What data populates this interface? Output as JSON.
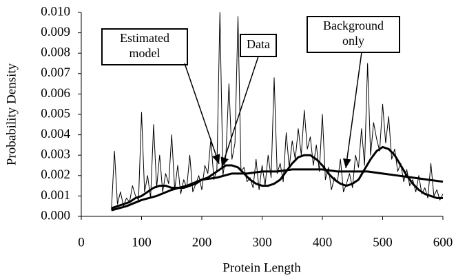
{
  "chart_data": {
    "type": "line",
    "ylabel": "Probability Density",
    "xlabel": "Protein Length",
    "xlim": [
      0,
      600
    ],
    "xticks": [
      0,
      100,
      200,
      300,
      400,
      500,
      600
    ],
    "ylim": [
      0,
      0.01
    ],
    "yticks": [
      {
        "value": 0,
        "label": "0.000"
      },
      0.001,
      0.002,
      0.003,
      0.004,
      0.005,
      0.006,
      0.007,
      0.008,
      0.009,
      {
        "value": 0.01,
        "label": "0.010"
      }
    ],
    "annotations": [
      [
        "Estimated",
        "model"
      ],
      [
        "Data"
      ],
      [
        "Background",
        "only"
      ]
    ],
    "series": [
      {
        "color": "#000000",
        "x": [
          50,
          55,
          60,
          65,
          70,
          75,
          80,
          85,
          90,
          95,
          100,
          105,
          110,
          115,
          120,
          125,
          130,
          135,
          140,
          145,
          150,
          155,
          160,
          165,
          170,
          175,
          180,
          185,
          190,
          195,
          200,
          205,
          210,
          215,
          220,
          225,
          230,
          235,
          240,
          245,
          250,
          255,
          260,
          265,
          270,
          275,
          280,
          285,
          290,
          295,
          300,
          305,
          310,
          315,
          320,
          325,
          330,
          335,
          340,
          345,
          350,
          355,
          360,
          365,
          370,
          375,
          380,
          385,
          390,
          395,
          400,
          405,
          410,
          415,
          420,
          425,
          430,
          435,
          440,
          445,
          450,
          455,
          460,
          465,
          470,
          475,
          480,
          485,
          490,
          495,
          500,
          505,
          510,
          515,
          520,
          525,
          530,
          535,
          540,
          545,
          550,
          555,
          560,
          565,
          570,
          575,
          580,
          585,
          590,
          595,
          600
        ],
        "values": [
          0.0003,
          0.0032,
          0.0006,
          0.0012,
          0.0005,
          0.0009,
          0.0007,
          0.0015,
          0.001,
          0.0008,
          0.0051,
          0.0012,
          0.002,
          0.0009,
          0.0045,
          0.0014,
          0.003,
          0.0012,
          0.0021,
          0.0016,
          0.004,
          0.0013,
          0.0025,
          0.0011,
          0.0018,
          0.0014,
          0.003,
          0.0012,
          0.0016,
          0.002,
          0.0013,
          0.0025,
          0.0021,
          0.0038,
          0.0018,
          0.0023,
          0.01,
          0.002,
          0.003,
          0.0065,
          0.0028,
          0.0036,
          0.0098,
          0.0022,
          0.0024,
          0.0017,
          0.0019,
          0.0014,
          0.0028,
          0.0013,
          0.0025,
          0.0015,
          0.003,
          0.0019,
          0.0068,
          0.0021,
          0.0026,
          0.0017,
          0.0041,
          0.0024,
          0.0037,
          0.0028,
          0.0043,
          0.003,
          0.0052,
          0.0033,
          0.0039,
          0.0025,
          0.0035,
          0.0022,
          0.005,
          0.0018,
          0.0024,
          0.0013,
          0.0019,
          0.0017,
          0.0028,
          0.0012,
          0.0016,
          0.0021,
          0.0014,
          0.003,
          0.0024,
          0.0043,
          0.0025,
          0.0075,
          0.003,
          0.0046,
          0.0038,
          0.0032,
          0.0055,
          0.0036,
          0.0049,
          0.0028,
          0.0033,
          0.0022,
          0.0026,
          0.0017,
          0.0023,
          0.0015,
          0.0018,
          0.0012,
          0.002,
          0.0011,
          0.0014,
          0.0009,
          0.0026,
          0.001,
          0.0013,
          0.0008,
          0.0011
        ]
      },
      {
        "color": "#000000",
        "x": [
          50,
          60,
          70,
          80,
          90,
          100,
          110,
          120,
          130,
          140,
          150,
          160,
          170,
          180,
          190,
          200,
          210,
          220,
          230,
          240,
          250,
          260,
          270,
          280,
          290,
          300,
          310,
          320,
          330,
          340,
          350,
          360,
          370,
          380,
          390,
          400,
          410,
          420,
          430,
          440,
          450,
          460,
          470,
          480,
          490,
          500,
          510,
          520,
          530,
          540,
          550,
          560,
          570,
          580,
          590,
          600
        ],
        "values": [
          0.0004,
          0.0005,
          0.0006,
          0.0007,
          0.0009,
          0.001,
          0.0012,
          0.0014,
          0.0015,
          0.0015,
          0.0014,
          0.0014,
          0.0014,
          0.0015,
          0.0016,
          0.0018,
          0.0019,
          0.0021,
          0.0023,
          0.0025,
          0.0025,
          0.0024,
          0.0021,
          0.0018,
          0.0016,
          0.0015,
          0.0015,
          0.0016,
          0.0018,
          0.0022,
          0.0026,
          0.0029,
          0.003,
          0.003,
          0.0028,
          0.0025,
          0.0021,
          0.0018,
          0.0016,
          0.0015,
          0.0016,
          0.0018,
          0.0023,
          0.0028,
          0.0032,
          0.0034,
          0.0033,
          0.003,
          0.0025,
          0.002,
          0.0016,
          0.0013,
          0.0011,
          0.001,
          0.0009,
          0.0009
        ]
      },
      {
        "color": "#000000",
        "x": [
          50,
          75,
          100,
          125,
          150,
          175,
          200,
          225,
          250,
          275,
          300,
          325,
          350,
          375,
          400,
          425,
          450,
          475,
          500,
          525,
          550,
          575,
          600
        ],
        "values": [
          0.0003,
          0.0005,
          0.0008,
          0.001,
          0.0013,
          0.0015,
          0.0018,
          0.0019,
          0.0021,
          0.0021,
          0.0022,
          0.0022,
          0.0023,
          0.0023,
          0.0023,
          0.0022,
          0.0022,
          0.0022,
          0.0021,
          0.002,
          0.0019,
          0.0018,
          0.0017
        ]
      }
    ]
  }
}
